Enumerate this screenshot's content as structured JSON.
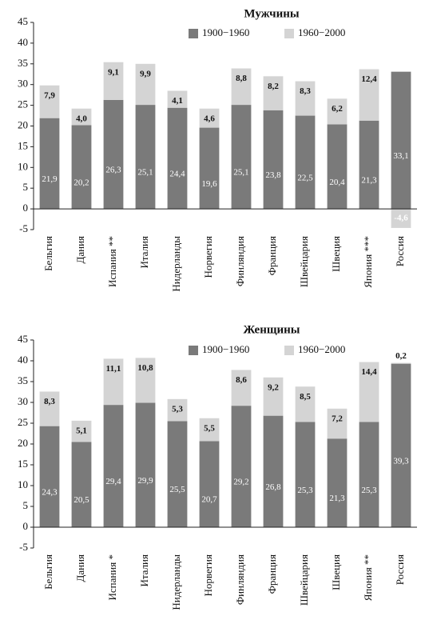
{
  "chart_data": [
    {
      "type": "bar",
      "stacked": true,
      "title": "Мужчины",
      "legend": "top-right",
      "grid": false,
      "categories": [
        "Бельгия",
        "Дания",
        "Испания **",
        "Италия",
        "Нидерланды",
        "Норвегия",
        "Финляндия",
        "Франция",
        "Швейцария",
        "Швеция",
        "Япония ***",
        "Россия"
      ],
      "series": [
        {
          "name": "1900−1960",
          "color": "#7a7a7a",
          "values": [
            21.9,
            20.2,
            26.3,
            25.1,
            24.4,
            19.6,
            25.1,
            23.8,
            22.5,
            20.4,
            21.3,
            33.1
          ],
          "value_labels": [
            "21,9",
            "20,2",
            "26,3",
            "25,1",
            "24,4",
            "19,6",
            "25,1",
            "23,8",
            "22,5",
            "20,4",
            "21,3",
            "33,1"
          ]
        },
        {
          "name": "1960−2000",
          "color": "#d4d4d4",
          "values": [
            7.9,
            4.0,
            9.1,
            9.9,
            4.1,
            4.6,
            8.8,
            8.2,
            8.3,
            6.2,
            12.4,
            -4.6
          ],
          "value_labels": [
            "7,9",
            "4,0",
            "9,1",
            "9,9",
            "4,1",
            "4,6",
            "8,8",
            "8,2",
            "8,3",
            "6,2",
            "12,4",
            "-4,6"
          ]
        }
      ],
      "ylim": [
        -5,
        45
      ],
      "yticks": [
        -5,
        0,
        5,
        10,
        15,
        20,
        25,
        30,
        35,
        40,
        45
      ]
    },
    {
      "type": "bar",
      "stacked": true,
      "title": "Женщины",
      "legend": "top-right",
      "grid": false,
      "categories": [
        "Бельгия",
        "Дания",
        "Испания *",
        "Италия",
        "Нидерланды",
        "Норвегия",
        "Финляндия",
        "Франция",
        "Швейцария",
        "Швеция",
        "Япония **",
        "Россия"
      ],
      "series": [
        {
          "name": "1900−1960",
          "color": "#7a7a7a",
          "values": [
            24.3,
            20.5,
            29.4,
            29.9,
            25.5,
            20.7,
            29.2,
            26.8,
            25.3,
            21.3,
            25.3,
            39.3
          ],
          "value_labels": [
            "24,3",
            "20,5",
            "29,4",
            "29,9",
            "25,5",
            "20,7",
            "29,2",
            "26,8",
            "25,3",
            "21,3",
            "25,3",
            "39,3"
          ]
        },
        {
          "name": "1960−2000",
          "color": "#d4d4d4",
          "values": [
            8.3,
            5.1,
            11.1,
            10.8,
            5.3,
            5.5,
            8.6,
            9.2,
            8.5,
            7.2,
            14.4,
            0.2
          ],
          "value_labels": [
            "8,3",
            "5,1",
            "11,1",
            "10,8",
            "5,3",
            "5,5",
            "8,6",
            "9,2",
            "8,5",
            "7,2",
            "14,4",
            "0,2"
          ]
        }
      ],
      "ylim": [
        -5,
        45
      ],
      "yticks": [
        -5,
        0,
        5,
        10,
        15,
        20,
        25,
        30,
        35,
        40,
        45
      ]
    }
  ]
}
